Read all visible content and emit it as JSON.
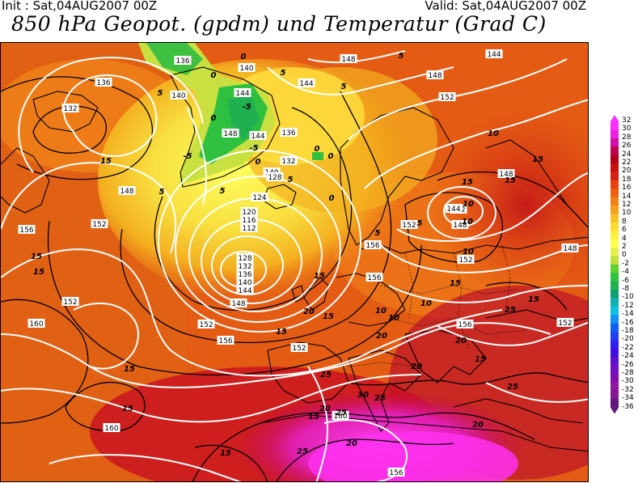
{
  "header": {
    "init": "Init : Sat,04AUG2007 00Z",
    "valid": "Valid: Sat,04AUG2007 00Z",
    "title": "850 hPa Geopot. (gpdm) und Temperatur (Grad C)"
  },
  "geopotential_labels": [
    "136",
    "140",
    "148",
    "144",
    "132",
    "136",
    "140",
    "144",
    "148",
    "144",
    "140",
    "136",
    "132",
    "128",
    "124",
    "120",
    "116",
    "112",
    "128",
    "132",
    "136",
    "140",
    "144",
    "148",
    "148",
    "152",
    "156",
    "152",
    "152",
    "156",
    "152",
    "160",
    "156",
    "156",
    "152",
    "152",
    "144",
    "148",
    "152",
    "160",
    "160",
    "156",
    "144",
    "148",
    "152",
    "148",
    "148",
    "152",
    "156"
  ],
  "temperature_labels": [
    "0",
    "0",
    "5",
    "5",
    "-5",
    "5",
    "0",
    "-5",
    "-5",
    "0",
    "0",
    "5",
    "15",
    "5",
    "0",
    "0",
    "5",
    "15",
    "10",
    "5",
    "10",
    "15",
    "15",
    "10",
    "15",
    "5",
    "5",
    "10",
    "15",
    "15",
    "15",
    "10",
    "10",
    "15",
    "15",
    "20",
    "20",
    "20",
    "25",
    "20",
    "25",
    "25",
    "30",
    "25",
    "20",
    "15",
    "20",
    "25",
    "15",
    "10",
    "15",
    "20",
    "25",
    "15",
    "15",
    "15"
  ],
  "color_scale": {
    "labels": [
      "32",
      "30",
      "28",
      "26",
      "24",
      "22",
      "20",
      "18",
      "16",
      "14",
      "12",
      "10",
      "8",
      "6",
      "4",
      "2",
      "0",
      "-2",
      "-4",
      "-6",
      "-8",
      "-10",
      "-12",
      "-14",
      "-16",
      "-18",
      "-20",
      "-22",
      "-24",
      "-26",
      "-28",
      "-30",
      "-32",
      "-34",
      "-36"
    ],
    "colors": [
      "#ff30ff",
      "#f020e0",
      "#d010a8",
      "#c00050",
      "#b00018",
      "#c81010",
      "#d82010",
      "#e84010",
      "#ee6010",
      "#f08018",
      "#f4a020",
      "#f8c028",
      "#fcdc30",
      "#fff040",
      "#ffff50",
      "#e8f050",
      "#c0e040",
      "#60d030",
      "#30c040",
      "#20b050",
      "#10a070",
      "#10b0b0",
      "#10c0e0",
      "#1090f0",
      "#1060f0",
      "#2040f0",
      "#3020f0",
      "#4010e0",
      "#6010d0",
      "#7010c0",
      "#8010b0",
      "#9018a0",
      "#801890",
      "#601878"
    ]
  },
  "colors": {
    "warm": "#e06010",
    "hot": "#ff20f0",
    "cold": "#20c040"
  }
}
